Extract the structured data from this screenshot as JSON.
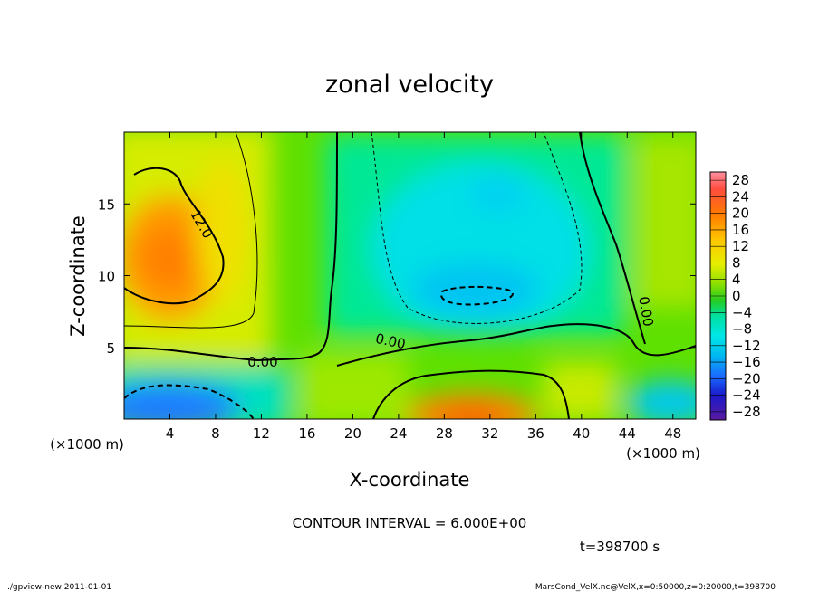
{
  "chart_data": {
    "type": "heatmap",
    "title": "zonal velocity",
    "xlabel": "X-coordinate",
    "ylabel": "Z-coordinate",
    "x_unit": "(×1000 m)",
    "y_unit": "(×1000 m)",
    "xlim": [
      0,
      50
    ],
    "ylim": [
      0,
      20
    ],
    "xticks": [
      "4",
      "8",
      "12",
      "16",
      "20",
      "24",
      "28",
      "32",
      "36",
      "40",
      "44",
      "48"
    ],
    "yticks": [
      "5",
      "10",
      "15"
    ],
    "xtick_values": [
      4,
      8,
      12,
      16,
      20,
      24,
      28,
      32,
      36,
      40,
      44,
      48
    ],
    "ytick_values": [
      5,
      10,
      15
    ],
    "colorbar": {
      "labels": [
        "28",
        "24",
        "20",
        "16",
        "12",
        "8",
        "4",
        "0",
        "−4",
        "−8",
        "−12",
        "−16",
        "−20",
        "−24",
        "−28"
      ],
      "levels": [
        28,
        24,
        20,
        16,
        12,
        8,
        4,
        0,
        -4,
        -8,
        -12,
        -16,
        -20,
        -24,
        -28
      ],
      "range": [
        -30,
        30
      ]
    },
    "contour_labels": [
      "12.0",
      "0.00",
      "0.00",
      "0.00"
    ],
    "contour_interval_text": "CONTOUR INTERVAL = 6.000E+00",
    "time_text": "t=398700 s",
    "grid": false
  },
  "footer": {
    "left": "./gpview-new   2011-01-01",
    "right": "MarsCond_VelX.nc@VelX,x=0:50000,z=0:20000,t=398700"
  },
  "colors": {
    "frame": "#000000",
    "background": "#ffffff"
  }
}
